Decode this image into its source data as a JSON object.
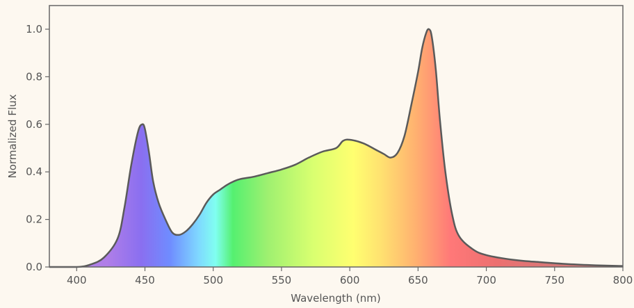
{
  "chart_data": {
    "type": "area",
    "xlabel": "Wavelength (nm)",
    "ylabel": "Normalized Flux",
    "xlim": [
      380,
      800
    ],
    "ylim": [
      0,
      1.1
    ],
    "x_ticks": [
      400,
      450,
      500,
      550,
      600,
      650,
      700,
      750,
      800
    ],
    "y_ticks": [
      0.0,
      0.2,
      0.4,
      0.6,
      0.8,
      1.0
    ],
    "y_tick_labels": [
      "0.0",
      "0.2",
      "0.4",
      "0.6",
      "0.8",
      "1.0"
    ],
    "grid": false,
    "fill": "spectral rainbow by wavelength",
    "colors": {
      "background": "#fdf8f0",
      "line": "#5a5a5a",
      "axis": "#666666",
      "text": "#555555"
    },
    "series": [
      {
        "x": [
          380,
          400,
          410,
          420,
          430,
          435,
          440,
          445,
          448,
          450,
          453,
          456,
          460,
          465,
          470,
          475,
          480,
          485,
          490,
          495,
          500,
          505,
          510,
          515,
          520,
          530,
          540,
          550,
          560,
          570,
          580,
          590,
          595,
          600,
          610,
          620,
          625,
          630,
          635,
          640,
          645,
          650,
          653,
          656,
          658,
          660,
          663,
          666,
          670,
          675,
          680,
          690,
          700,
          720,
          740,
          760,
          780,
          800
        ],
        "y": [
          0.0,
          0.0,
          0.01,
          0.04,
          0.12,
          0.25,
          0.43,
          0.57,
          0.6,
          0.58,
          0.48,
          0.36,
          0.27,
          0.2,
          0.145,
          0.135,
          0.15,
          0.18,
          0.22,
          0.27,
          0.305,
          0.325,
          0.345,
          0.36,
          0.37,
          0.38,
          0.395,
          0.41,
          0.43,
          0.46,
          0.485,
          0.5,
          0.53,
          0.535,
          0.52,
          0.49,
          0.475,
          0.46,
          0.48,
          0.55,
          0.68,
          0.82,
          0.92,
          0.985,
          1.0,
          0.97,
          0.83,
          0.62,
          0.4,
          0.22,
          0.13,
          0.075,
          0.05,
          0.03,
          0.02,
          0.012,
          0.007,
          0.004
        ]
      }
    ]
  }
}
